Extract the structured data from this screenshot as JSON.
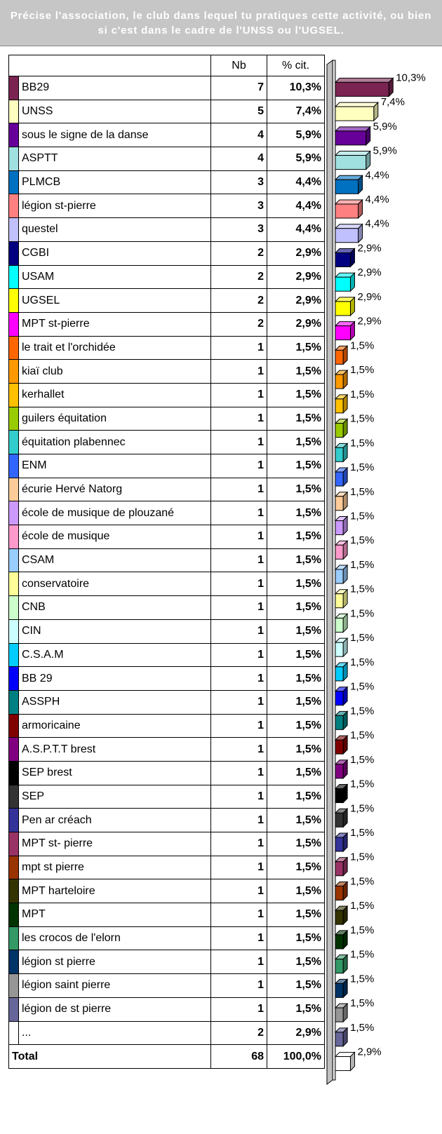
{
  "header": {
    "title": "Précise l'association, le club dans lequel tu pratiques cette activité, ou bien si c'est dans le cadre de l'UNSS ou l'UGSEL."
  },
  "table": {
    "columns": [
      "Nb",
      "% cit."
    ],
    "rows": [
      {
        "label": "BB29",
        "color": "#7b2452",
        "count": 7,
        "percent": 10.3,
        "percent_label": "10,3%"
      },
      {
        "label": "UNSS",
        "color": "#ffffc0",
        "count": 5,
        "percent": 7.4,
        "percent_label": "7,4%"
      },
      {
        "label": "sous le signe de la danse",
        "color": "#660099",
        "count": 4,
        "percent": 5.9,
        "percent_label": "5,9%"
      },
      {
        "label": "ASPTT",
        "color": "#a0e0e0",
        "count": 4,
        "percent": 5.9,
        "percent_label": "5,9%"
      },
      {
        "label": "PLMCB",
        "color": "#0070c0",
        "count": 3,
        "percent": 4.4,
        "percent_label": "4,4%"
      },
      {
        "label": "légion st-pierre",
        "color": "#ff8080",
        "count": 3,
        "percent": 4.4,
        "percent_label": "4,4%"
      },
      {
        "label": "questel",
        "color": "#c0c0ff",
        "count": 3,
        "percent": 4.4,
        "percent_label": "4,4%"
      },
      {
        "label": "CGBI",
        "color": "#000080",
        "count": 2,
        "percent": 2.9,
        "percent_label": "2,9%"
      },
      {
        "label": "USAM",
        "color": "#00ffff",
        "count": 2,
        "percent": 2.9,
        "percent_label": "2,9%"
      },
      {
        "label": "UGSEL",
        "color": "#ffff00",
        "count": 2,
        "percent": 2.9,
        "percent_label": "2,9%"
      },
      {
        "label": "MPT st-pierre",
        "color": "#ff00ff",
        "count": 2,
        "percent": 2.9,
        "percent_label": "2,9%"
      },
      {
        "label": "le trait et l'orchidée",
        "color": "#ff6600",
        "count": 1,
        "percent": 1.5,
        "percent_label": "1,5%"
      },
      {
        "label": "kiaï club",
        "color": "#ff9900",
        "count": 1,
        "percent": 1.5,
        "percent_label": "1,5%"
      },
      {
        "label": "kerhallet",
        "color": "#ffc000",
        "count": 1,
        "percent": 1.5,
        "percent_label": "1,5%"
      },
      {
        "label": "guilers équitation",
        "color": "#99cc00",
        "count": 1,
        "percent": 1.5,
        "percent_label": "1,5%"
      },
      {
        "label": "équitation plabennec",
        "color": "#33cccc",
        "count": 1,
        "percent": 1.5,
        "percent_label": "1,5%"
      },
      {
        "label": "ENM",
        "color": "#3366ff",
        "count": 1,
        "percent": 1.5,
        "percent_label": "1,5%"
      },
      {
        "label": "écurie Hervé Natorg",
        "color": "#ffcc99",
        "count": 1,
        "percent": 1.5,
        "percent_label": "1,5%"
      },
      {
        "label": "école de musique de plouzané",
        "color": "#cc99ff",
        "count": 1,
        "percent": 1.5,
        "percent_label": "1,5%"
      },
      {
        "label": "école de musique",
        "color": "#ff99cc",
        "count": 1,
        "percent": 1.5,
        "percent_label": "1,5%"
      },
      {
        "label": "CSAM",
        "color": "#99ccff",
        "count": 1,
        "percent": 1.5,
        "percent_label": "1,5%"
      },
      {
        "label": "conservatoire",
        "color": "#ffff99",
        "count": 1,
        "percent": 1.5,
        "percent_label": "1,5%"
      },
      {
        "label": "CNB",
        "color": "#ccffcc",
        "count": 1,
        "percent": 1.5,
        "percent_label": "1,5%"
      },
      {
        "label": "CIN",
        "color": "#ccffff",
        "count": 1,
        "percent": 1.5,
        "percent_label": "1,5%"
      },
      {
        "label": "C.S.A.M",
        "color": "#00ccff",
        "count": 1,
        "percent": 1.5,
        "percent_label": "1,5%"
      },
      {
        "label": "BB 29",
        "color": "#0000ff",
        "count": 1,
        "percent": 1.5,
        "percent_label": "1,5%"
      },
      {
        "label": "ASSPH",
        "color": "#008080",
        "count": 1,
        "percent": 1.5,
        "percent_label": "1,5%"
      },
      {
        "label": "armoricaine",
        "color": "#800000",
        "count": 1,
        "percent": 1.5,
        "percent_label": "1,5%"
      },
      {
        "label": "A.S.P.T.T brest",
        "color": "#800080",
        "count": 1,
        "percent": 1.5,
        "percent_label": "1,5%"
      },
      {
        "label": "SEP brest",
        "color": "#000000",
        "count": 1,
        "percent": 1.5,
        "percent_label": "1,5%"
      },
      {
        "label": "SEP",
        "color": "#333333",
        "count": 1,
        "percent": 1.5,
        "percent_label": "1,5%"
      },
      {
        "label": "Pen ar créach",
        "color": "#333399",
        "count": 1,
        "percent": 1.5,
        "percent_label": "1,5%"
      },
      {
        "label": "MPT st- pierre",
        "color": "#993366",
        "count": 1,
        "percent": 1.5,
        "percent_label": "1,5%"
      },
      {
        "label": "mpt st pierre",
        "color": "#993300",
        "count": 1,
        "percent": 1.5,
        "percent_label": "1,5%"
      },
      {
        "label": "MPT harteloire",
        "color": "#333300",
        "count": 1,
        "percent": 1.5,
        "percent_label": "1,5%"
      },
      {
        "label": "MPT",
        "color": "#003300",
        "count": 1,
        "percent": 1.5,
        "percent_label": "1,5%"
      },
      {
        "label": "les crocos de l'elorn",
        "color": "#339966",
        "count": 1,
        "percent": 1.5,
        "percent_label": "1,5%"
      },
      {
        "label": "légion st pierre",
        "color": "#003366",
        "count": 1,
        "percent": 1.5,
        "percent_label": "1,5%"
      },
      {
        "label": "légion saint pierre",
        "color": "#969696",
        "count": 1,
        "percent": 1.5,
        "percent_label": "1,5%"
      },
      {
        "label": "légion de st pierre",
        "color": "#666699",
        "count": 1,
        "percent": 1.5,
        "percent_label": "1,5%"
      },
      {
        "label": "...",
        "color": "#ffffff",
        "count": 2,
        "percent": 2.9,
        "percent_label": "2,9%"
      }
    ],
    "total": {
      "label": "Total",
      "count": 68,
      "percent_label": "100,0%"
    }
  }
}
